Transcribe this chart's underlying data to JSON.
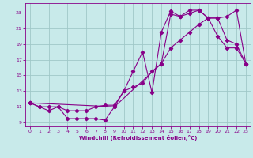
{
  "background_color": "#c8eaea",
  "grid_color": "#a0c8c8",
  "line_color": "#880088",
  "xlabel": "Windchill (Refroidissement éolien,°C)",
  "xlim": [
    -0.5,
    23.5
  ],
  "ylim": [
    8.5,
    24.2
  ],
  "xticks": [
    0,
    1,
    2,
    3,
    4,
    5,
    6,
    7,
    8,
    9,
    10,
    11,
    12,
    13,
    14,
    15,
    16,
    17,
    18,
    19,
    20,
    21,
    22,
    23
  ],
  "yticks": [
    9,
    11,
    13,
    15,
    17,
    19,
    21,
    23
  ],
  "series1_x": [
    0,
    1,
    2,
    3,
    4,
    5,
    6,
    7,
    8,
    9,
    10,
    11,
    12,
    13,
    14,
    15,
    16,
    17,
    18,
    19,
    20,
    21,
    22,
    23
  ],
  "series1_y": [
    11.5,
    11.0,
    10.5,
    11.0,
    9.5,
    9.5,
    9.5,
    9.5,
    9.3,
    11.0,
    13.0,
    15.5,
    18.0,
    12.8,
    20.5,
    23.2,
    22.5,
    23.3,
    23.3,
    22.3,
    20.0,
    18.5,
    18.5,
    16.5
  ],
  "series2_x": [
    0,
    1,
    2,
    3,
    4,
    5,
    6,
    7,
    8,
    9,
    10,
    11,
    12,
    13,
    14,
    15,
    16,
    17,
    18,
    19,
    20,
    21,
    22,
    23
  ],
  "series2_y": [
    11.5,
    11.0,
    11.0,
    11.0,
    10.5,
    10.5,
    10.5,
    11.0,
    11.2,
    11.2,
    13.0,
    13.5,
    14.0,
    15.5,
    16.5,
    18.5,
    19.5,
    20.5,
    21.5,
    22.3,
    22.3,
    22.5,
    23.3,
    16.5
  ],
  "series3_x": [
    0,
    9,
    14,
    15,
    16,
    17,
    18,
    19,
    20,
    21,
    22,
    23
  ],
  "series3_y": [
    11.5,
    11.0,
    16.5,
    22.8,
    22.5,
    22.9,
    23.3,
    22.3,
    22.3,
    19.5,
    19.0,
    16.5
  ]
}
